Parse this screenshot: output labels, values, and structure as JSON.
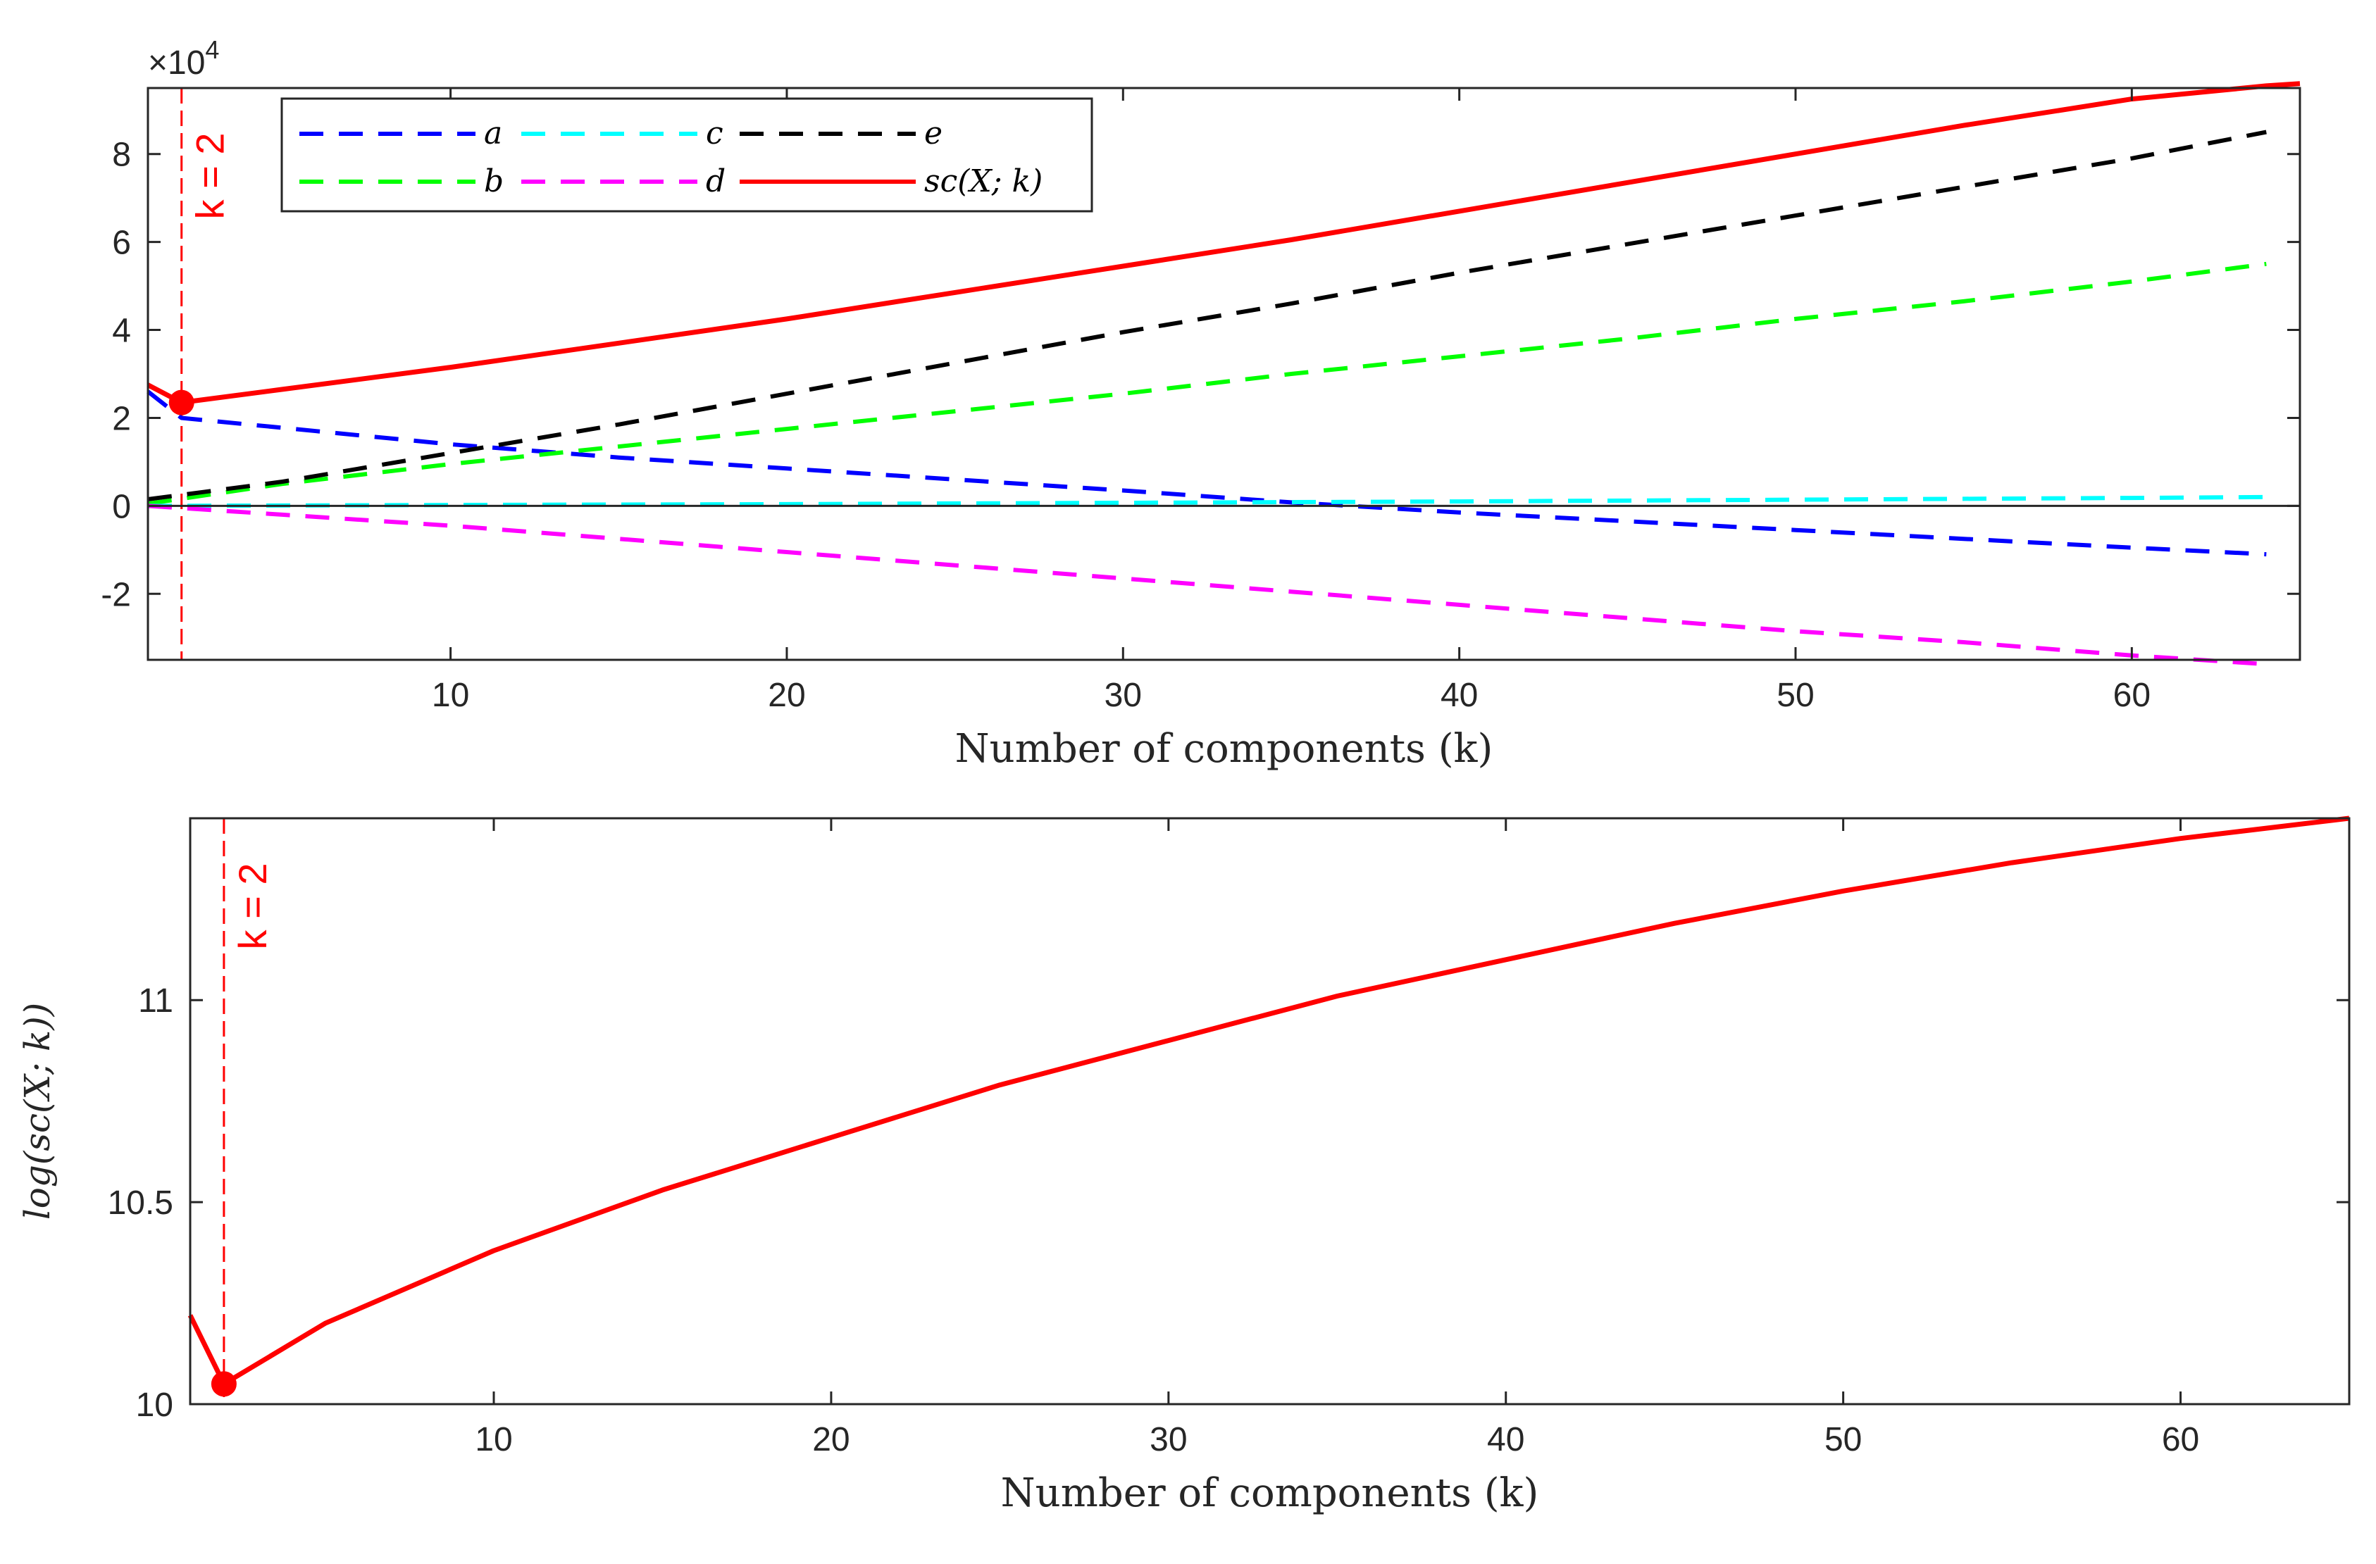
{
  "chart_data": [
    {
      "type": "line",
      "id": "top",
      "xlabel": "Number of components (k)",
      "ylabel": "",
      "xlim": [
        1,
        65
      ],
      "ylim": [
        -3.5,
        9.5
      ],
      "y_multiplier_label": "×10",
      "y_multiplier_exponent": "4",
      "xticks": [
        10,
        20,
        30,
        40,
        50,
        60
      ],
      "yticks": [
        -2,
        0,
        2,
        4,
        6,
        8
      ],
      "xtick_labels": [
        "10",
        "20",
        "30",
        "40",
        "50",
        "60"
      ],
      "ytick_labels": [
        "-2",
        "0",
        "2",
        "4",
        "6",
        "8"
      ],
      "vline": {
        "x": 2,
        "label": "k = 2",
        "color": "#ff0000"
      },
      "min_marker": {
        "x": 2,
        "y": 2.35
      },
      "legend_position": "top-left",
      "series": [
        {
          "name": "a",
          "legend": "a",
          "color": "#0000ff",
          "style": "dashed",
          "x": [
            1,
            2,
            6,
            10,
            15,
            20,
            25,
            30,
            35,
            40,
            45,
            50,
            55,
            60,
            64
          ],
          "y": [
            2.6,
            2.0,
            1.7,
            1.4,
            1.1,
            0.85,
            0.6,
            0.35,
            0.08,
            -0.15,
            -0.35,
            -0.55,
            -0.75,
            -0.95,
            -1.1
          ]
        },
        {
          "name": "b",
          "legend": "b",
          "color": "#00ff00",
          "style": "dashed",
          "x": [
            1,
            5,
            10,
            15,
            20,
            25,
            30,
            35,
            40,
            45,
            50,
            55,
            60,
            64
          ],
          "y": [
            0.05,
            0.5,
            0.95,
            1.35,
            1.75,
            2.15,
            2.55,
            3.0,
            3.4,
            3.8,
            4.25,
            4.65,
            5.1,
            5.5
          ]
        },
        {
          "name": "c",
          "legend": "c",
          "color": "#00ffff",
          "style": "dashed",
          "x": [
            1,
            10,
            20,
            30,
            40,
            50,
            60,
            64
          ],
          "y": [
            0.0,
            0.02,
            0.04,
            0.07,
            0.1,
            0.14,
            0.18,
            0.2
          ]
        },
        {
          "name": "d",
          "legend": "d",
          "color": "#ff00ff",
          "style": "dashed",
          "x": [
            1,
            5,
            10,
            15,
            20,
            25,
            30,
            35,
            40,
            45,
            50,
            55,
            60,
            64
          ],
          "y": [
            0.0,
            -0.2,
            -0.45,
            -0.75,
            -1.05,
            -1.35,
            -1.65,
            -1.95,
            -2.25,
            -2.55,
            -2.85,
            -3.1,
            -3.4,
            -3.6
          ]
        },
        {
          "name": "e",
          "legend": "e",
          "color": "#000000",
          "style": "dashed",
          "x": [
            1,
            5,
            10,
            15,
            20,
            25,
            30,
            35,
            40,
            45,
            50,
            55,
            60,
            64
          ],
          "y": [
            0.15,
            0.55,
            1.2,
            1.85,
            2.55,
            3.25,
            3.95,
            4.6,
            5.3,
            5.95,
            6.6,
            7.25,
            7.9,
            8.5
          ]
        },
        {
          "name": "sc",
          "legend": "sc(X; k)",
          "color": "#ff0000",
          "style": "solid",
          "x": [
            1,
            2,
            5,
            10,
            15,
            20,
            25,
            30,
            35,
            40,
            45,
            50,
            55,
            60,
            64,
            65
          ],
          "y": [
            2.75,
            2.35,
            2.65,
            3.15,
            3.7,
            4.25,
            4.85,
            5.45,
            6.05,
            6.7,
            7.35,
            8.0,
            8.65,
            9.25,
            9.55,
            9.6
          ]
        }
      ]
    },
    {
      "type": "line",
      "id": "bottom",
      "xlabel": "Number of components (k)",
      "ylabel": "log(sc(X; k))",
      "xlim": [
        1,
        65
      ],
      "ylim": [
        10.0,
        11.45
      ],
      "xticks": [
        10,
        20,
        30,
        40,
        50,
        60
      ],
      "yticks": [
        10,
        10.5,
        11
      ],
      "xtick_labels": [
        "10",
        "20",
        "30",
        "40",
        "50",
        "60"
      ],
      "ytick_labels": [
        "10",
        "10.5",
        "11"
      ],
      "vline": {
        "x": 2,
        "label": "k = 2",
        "color": "#ff0000"
      },
      "min_marker": {
        "x": 2,
        "y": 10.05
      },
      "series": [
        {
          "name": "log-sc",
          "color": "#ff0000",
          "style": "solid",
          "x": [
            1,
            2,
            5,
            10,
            15,
            20,
            25,
            30,
            35,
            40,
            45,
            50,
            55,
            60,
            63,
            65
          ],
          "y": [
            10.22,
            10.05,
            10.2,
            10.38,
            10.53,
            10.66,
            10.79,
            10.9,
            11.01,
            11.1,
            11.19,
            11.27,
            11.34,
            11.4,
            11.43,
            11.45
          ]
        }
      ]
    }
  ]
}
